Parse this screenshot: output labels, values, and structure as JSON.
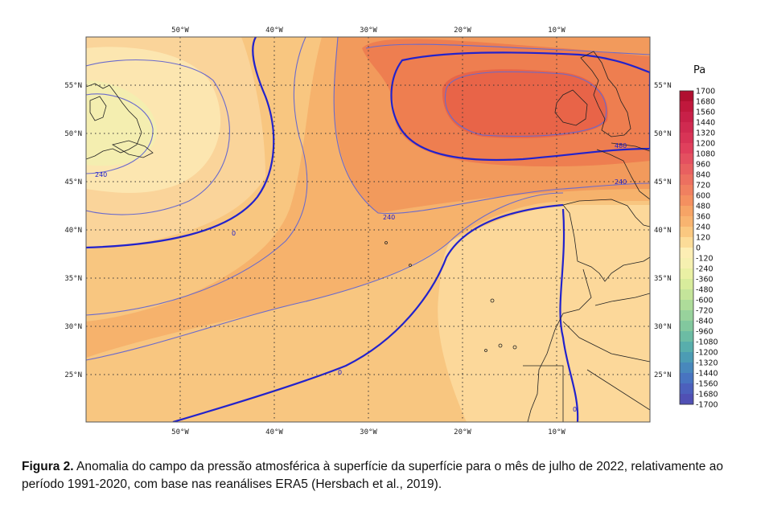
{
  "map": {
    "unit": "Pa",
    "top_lon_labels": [
      "50°W",
      "40°W",
      "30°W",
      "20°W",
      "10°W"
    ],
    "bottom_lon_labels": [
      "50°W",
      "40°W",
      "30°W",
      "20°W",
      "10°W"
    ],
    "left_lat_labels": [
      "55°N",
      "50°N",
      "45°N",
      "40°N",
      "35°N",
      "30°N",
      "25°N"
    ],
    "right_lat_labels": [
      "55°N",
      "50°N",
      "45°N",
      "40°N",
      "35°N",
      "30°N",
      "25°N"
    ],
    "contour_labels": [
      "240",
      "240",
      "240",
      "240",
      "0",
      "0",
      "0",
      "480"
    ],
    "colorbar": {
      "levels": [
        "1700",
        "1680",
        "1560",
        "1440",
        "1320",
        "1200",
        "1080",
        "960",
        "840",
        "720",
        "600",
        "480",
        "360",
        "240",
        "120",
        "0",
        "-120",
        "-240",
        "-360",
        "-480",
        "-600",
        "-720",
        "-840",
        "-960",
        "-1080",
        "-1200",
        "-1320",
        "-1440",
        "-1560",
        "-1680",
        "-1700"
      ],
      "colors": [
        "#b01030",
        "#c0183c",
        "#c82048",
        "#d02a50",
        "#d83456",
        "#e0405c",
        "#e45060",
        "#e86060",
        "#ec7060",
        "#f08060",
        "#f49060",
        "#f6a466",
        "#f8b470",
        "#fac880",
        "#fcdc98",
        "#fdeeb4",
        "#f6f0b0",
        "#eaf0a4",
        "#d8ec9c",
        "#c4e49a",
        "#aedc9a",
        "#98d29c",
        "#82c89e",
        "#6cbca4",
        "#58aeac",
        "#4c9cb4",
        "#4888bc",
        "#4874c0",
        "#4c60bc",
        "#5050b4"
      ]
    }
  },
  "caption": {
    "figure_label": "Figura 2.",
    "text": " Anomalia do campo da pressão atmosférica à superfície da superfície para o mês de julho de 2022, relativamente ao período 1991-2020, com base nas reanálises ERA5 (Hersbach et al., 2019)."
  }
}
